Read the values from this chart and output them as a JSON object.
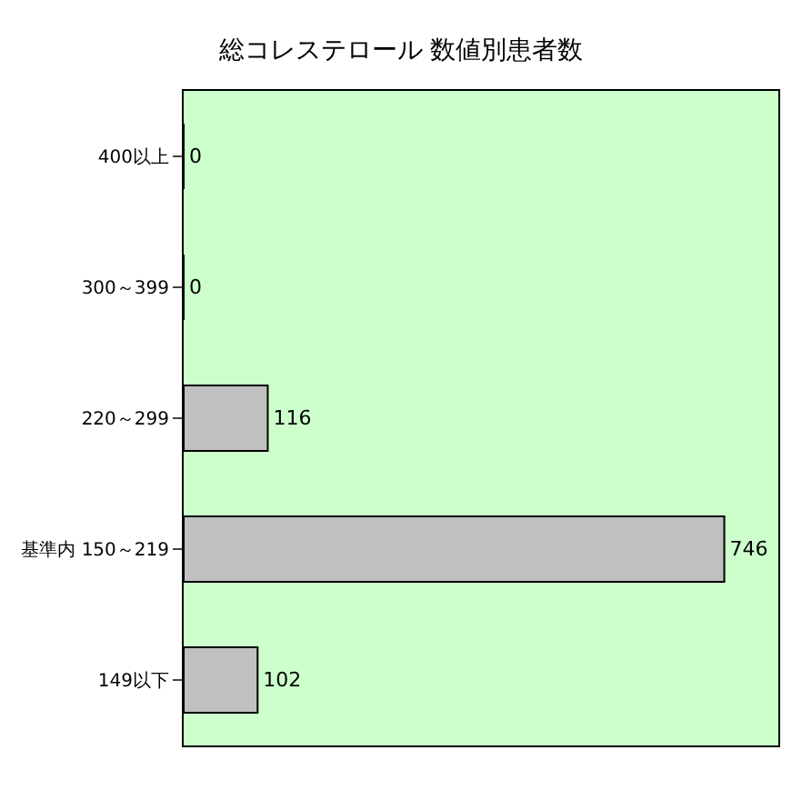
{
  "chart_data": {
    "type": "bar",
    "orientation": "horizontal",
    "title": "総コレステロール 数値別患者数",
    "categories": [
      "400以上",
      "300～399",
      "220～299",
      "基準内 150～219",
      "149以下"
    ],
    "values": [
      0,
      0,
      116,
      746,
      102
    ],
    "color": "#c0c0c0",
    "data_labels": true,
    "grid": false,
    "legend": false
  }
}
